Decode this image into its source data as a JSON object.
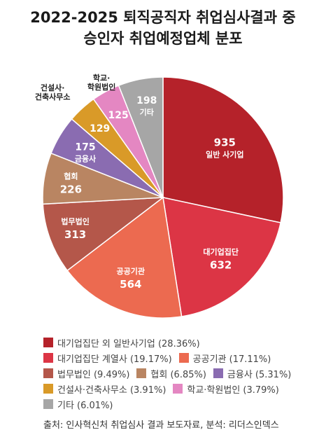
{
  "header": {
    "title_line1": "2022-2025 퇴직공직자 취업심사결과 중",
    "title_line2": "승인자 취업예정업체 분포"
  },
  "chart_data": {
    "type": "pie",
    "title": "2022-2025 퇴직공직자 취업심사결과 중 승인자 취업예정업체 분포",
    "slices": [
      {
        "label": "일반 사기업",
        "value": 935,
        "color": "#b5222a",
        "legend": "대기업집단 외 일반사기업 (28.36%)"
      },
      {
        "label": "대기업집단",
        "value": 632,
        "color": "#dc3545",
        "legend": "대기업집단 계열사 (19.17%)"
      },
      {
        "label": "공공기관",
        "value": 564,
        "color": "#ec6a50",
        "legend": "공공기관 (17.11%)"
      },
      {
        "label": "법무법인",
        "value": 313,
        "color": "#b4574a",
        "legend": "법무법인 (9.49%)"
      },
      {
        "label": "협회",
        "value": 226,
        "color": "#b98562",
        "legend": "협회 (6.85%)"
      },
      {
        "label": "금융사",
        "value": 175,
        "color": "#8a6cb1",
        "legend": "금융사 (5.31%)"
      },
      {
        "label": "건설사·\n건축사무소",
        "value": 129,
        "color": "#d99a28",
        "legend": "건설사·건축사무소 (3.91%)"
      },
      {
        "label": "학교·\n학원법인",
        "value": 125,
        "color": "#e487c2",
        "legend": "학교·학원법인 (3.79%)"
      },
      {
        "label": "기타",
        "value": 198,
        "color": "#a6a6a6",
        "legend": "기타 (6.01%)"
      }
    ],
    "legend_placement": "bottom"
  },
  "footer": {
    "source": "출처: 인사혁신처 취업심사 결과 보도자료, 분석: 리더스인덱스"
  }
}
